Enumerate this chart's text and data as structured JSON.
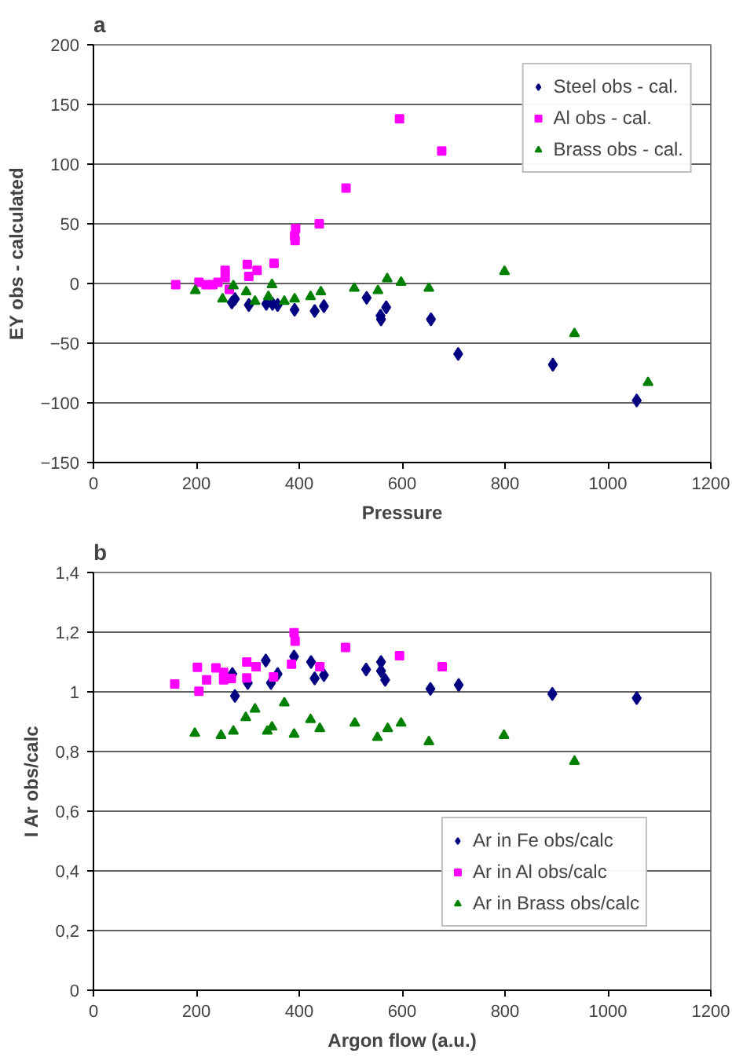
{
  "chart_data": [
    {
      "type": "scatter",
      "title": "a",
      "xlabel": "Pressure",
      "ylabel": "EY obs - calculated",
      "xlim": [
        0,
        1200
      ],
      "xticks": [
        0,
        200,
        400,
        600,
        800,
        1000,
        1200
      ],
      "ylim": [
        -150,
        200
      ],
      "yticks": [
        -150,
        -100,
        -50,
        0,
        50,
        100,
        150,
        200
      ],
      "grid": "y",
      "legend": "top right",
      "series": [
        {
          "name": "Steel obs - cal.",
          "color": "#000080",
          "marker": "diamond",
          "x": [
            269,
            275,
            302,
            336,
            348,
            358,
            391,
            430,
            448,
            531,
            558,
            559,
            569,
            656,
            709,
            893,
            1056
          ],
          "values": [
            -16,
            -13,
            -18,
            -17,
            -17,
            -18,
            -22,
            -23,
            -19,
            -12,
            -27,
            -30,
            -20,
            -30,
            -59,
            -68,
            -98
          ]
        },
        {
          "name": "Al obs - cal.",
          "color": "#ff00ff",
          "marker": "square",
          "x": [
            160,
            205,
            219,
            232,
            242,
            256,
            256,
            264,
            299,
            302,
            318,
            351,
            391,
            392,
            393,
            439,
            491,
            595,
            677
          ],
          "values": [
            -1,
            1,
            -1,
            -1,
            1,
            5,
            11,
            -5,
            16,
            6,
            11,
            17,
            40,
            36,
            46,
            50,
            80,
            138,
            111
          ]
        },
        {
          "name": "Brass obs - cal.",
          "color": "#008000",
          "marker": "triangle",
          "x": [
            198,
            251,
            272,
            297,
            314,
            340,
            347,
            371,
            391,
            422,
            442,
            507,
            553,
            571,
            598,
            652,
            799,
            935,
            1078
          ],
          "values": [
            -6,
            -13,
            -2,
            -7,
            -15,
            -11,
            -1,
            -15,
            -13,
            -11,
            -7,
            -4,
            -6,
            4,
            1,
            -4,
            10,
            -42,
            -83
          ]
        }
      ]
    },
    {
      "type": "scatter",
      "title": "b",
      "xlabel": "Argon flow (a.u.)",
      "ylabel": "I Ar obs/calc",
      "xlim": [
        0,
        1200
      ],
      "xticks": [
        0,
        200,
        400,
        600,
        800,
        1000,
        1200
      ],
      "ylim": [
        0,
        1.4
      ],
      "yticks": [
        {
          "value": 0,
          "label": "0"
        },
        {
          "value": 0.2,
          "label": "0,2"
        },
        {
          "value": 0.4,
          "label": "0,4"
        },
        {
          "value": 0.6,
          "label": "0,6"
        },
        {
          "value": 0.8,
          "label": "0,8"
        },
        {
          "value": 1,
          "label": "1"
        },
        {
          "value": 1.2,
          "label": "1,2"
        },
        {
          "value": 1.4,
          "label": "1,4"
        }
      ],
      "grid": "y",
      "legend": "bottom right",
      "series": [
        {
          "name": "Ar in Fe obs/calc",
          "color": "#000080",
          "marker": "diamond",
          "x": [
            275,
            270,
            300,
            335,
            345,
            358,
            390,
            423,
            430,
            448,
            530,
            559,
            559,
            567,
            655,
            710,
            892,
            1056
          ],
          "values": [
            0.986,
            1.06,
            1.03,
            1.105,
            1.03,
            1.06,
            1.118,
            1.1,
            1.045,
            1.056,
            1.075,
            1.1,
            1.07,
            1.04,
            1.01,
            1.023,
            0.993,
            0.979
          ]
        },
        {
          "name": "Ar in Al obs/calc",
          "color": "#ff00ff",
          "marker": "square",
          "x": [
            158,
            202,
            205,
            220,
            238,
            253,
            253,
            268,
            298,
            298,
            316,
            350,
            385,
            390,
            392,
            440,
            490,
            595,
            678
          ],
          "values": [
            1.026,
            1.082,
            1.002,
            1.04,
            1.08,
            1.065,
            1.04,
            1.045,
            1.1,
            1.047,
            1.084,
            1.05,
            1.093,
            1.198,
            1.17,
            1.084,
            1.149,
            1.121,
            1.084
          ]
        },
        {
          "name": "Ar in Brass obs/calc",
          "color": "#008000",
          "marker": "triangle",
          "x": [
            197,
            248,
            272,
            296,
            314,
            338,
            347,
            371,
            390,
            422,
            440,
            508,
            552,
            572,
            598,
            652,
            798,
            935
          ],
          "values": [
            0.861,
            0.854,
            0.868,
            0.914,
            0.942,
            0.868,
            0.882,
            0.963,
            0.858,
            0.907,
            0.877,
            0.895,
            0.847,
            0.877,
            0.895,
            0.833,
            0.854,
            0.767
          ]
        }
      ]
    }
  ]
}
